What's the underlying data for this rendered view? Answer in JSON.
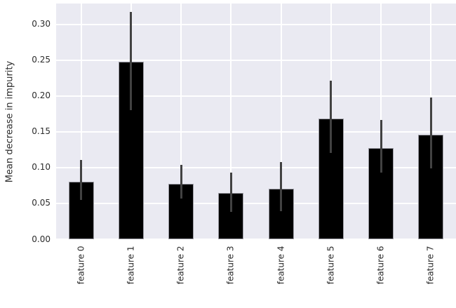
{
  "chart_data": {
    "type": "bar",
    "title": "",
    "xlabel": "",
    "ylabel": "Mean decrease in impurity",
    "categories": [
      "feature 0",
      "feature 1",
      "feature 2",
      "feature 3",
      "feature 4",
      "feature 5",
      "feature 6",
      "feature 7"
    ],
    "values": [
      0.08,
      0.248,
      0.077,
      0.065,
      0.071,
      0.169,
      0.127,
      0.146
    ],
    "error_low": [
      0.055,
      0.18,
      0.057,
      0.038,
      0.039,
      0.121,
      0.093,
      0.099
    ],
    "error_high": [
      0.111,
      0.318,
      0.104,
      0.093,
      0.108,
      0.222,
      0.167,
      0.198
    ],
    "ylim": [
      0,
      0.3294
    ],
    "yticks": [
      0.0,
      0.05,
      0.1,
      0.15,
      0.2,
      0.25,
      0.3
    ],
    "ytick_labels": [
      "0.00",
      "0.05",
      "0.10",
      "0.15",
      "0.20",
      "0.25",
      "0.30"
    ],
    "grid": true,
    "legend": null,
    "bar_width_fraction": 0.5,
    "colors": {
      "bar": "#000000",
      "error_bar": "#424242",
      "plot_background": "#eaeaf2",
      "grid_line": "#ffffff",
      "text": "#2b2b2b",
      "figure_background": "#ffffff"
    }
  }
}
